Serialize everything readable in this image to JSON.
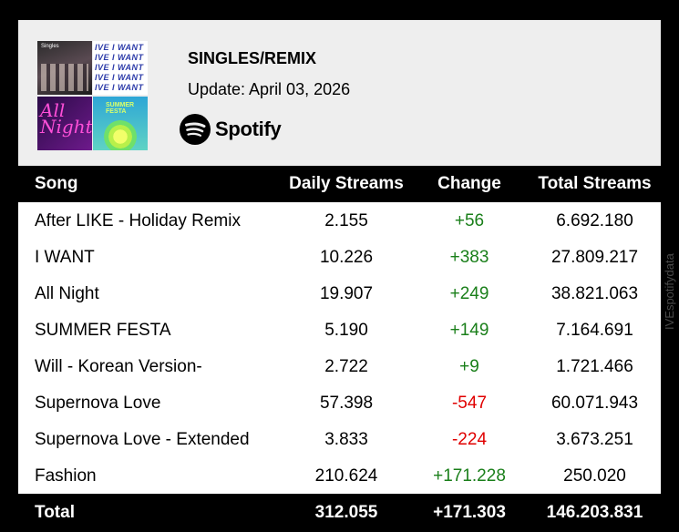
{
  "header": {
    "title": "SINGLES/REMIX",
    "update": "Update: April 03, 2026",
    "brand": "Spotify",
    "covers": [
      {
        "tag": "Singles"
      },
      {
        "lines": [
          "IVE I WANT",
          "IVE I WANT",
          "IVE I WANT",
          "IVE I WANT",
          "IVE I WANT"
        ]
      },
      {
        "text": "All Night"
      },
      {
        "text": "SUMMER FESTA"
      }
    ]
  },
  "table": {
    "columns": {
      "song": "Song",
      "daily": "Daily Streams",
      "change": "Change",
      "total": "Total Streams"
    },
    "rows": [
      {
        "song": "After LIKE - Holiday Remix",
        "daily": "2.155",
        "change": "+56",
        "total": "6.692.180"
      },
      {
        "song": "I WANT",
        "daily": "10.226",
        "change": "+383",
        "total": "27.809.217"
      },
      {
        "song": "All Night",
        "daily": "19.907",
        "change": "+249",
        "total": "38.821.063"
      },
      {
        "song": "SUMMER FESTA",
        "daily": "5.190",
        "change": "+149",
        "total": "7.164.691"
      },
      {
        "song": "Will - Korean Version-",
        "daily": "2.722",
        "change": "+9",
        "total": "1.721.466"
      },
      {
        "song": "Supernova Love",
        "daily": "57.398",
        "change": "-547",
        "total": "60.071.943"
      },
      {
        "song": "Supernova Love - Extended",
        "daily": "3.833",
        "change": "-224",
        "total": "3.673.251"
      },
      {
        "song": "Fashion",
        "daily": "210.624",
        "change": "+171.228",
        "total": "250.020"
      }
    ],
    "total": {
      "song": "Total",
      "daily": "312.055",
      "change": "+171.303",
      "total": "146.203.831"
    }
  },
  "watermark": "IVEspotifydata",
  "colors": {
    "positive": "#1a7f1a",
    "negative": "#e00000",
    "header_bg": "#eeeeee",
    "bar_bg": "#000000"
  }
}
